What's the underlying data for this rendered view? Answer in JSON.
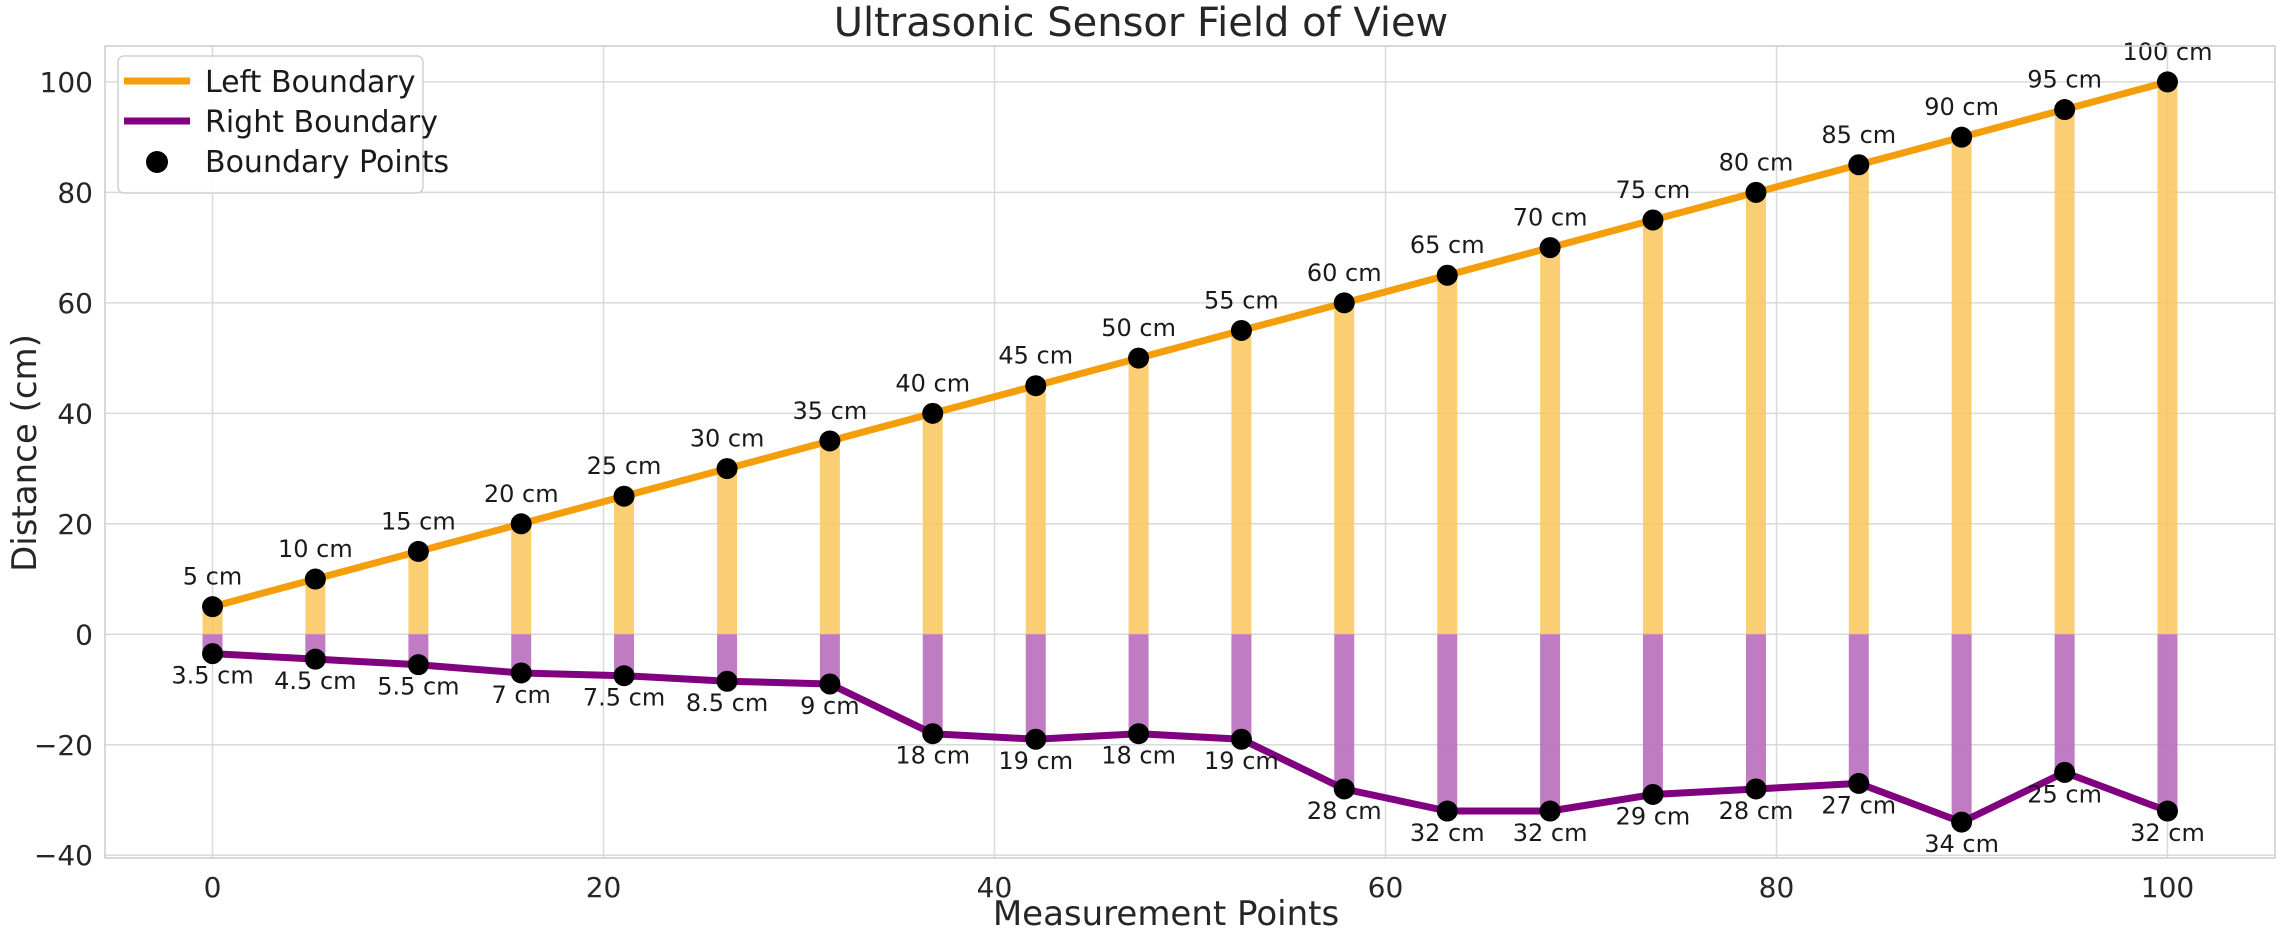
{
  "chart_data": {
    "type": "line",
    "title": "Ultrasonic Sensor Field of View",
    "xlabel": "Measurement Points",
    "ylabel": "Distance (cm)",
    "xlim": [
      -5.5,
      105.5
    ],
    "ylim": [
      -40.5,
      106.5
    ],
    "x_ticks": [
      0,
      20,
      40,
      60,
      80,
      100
    ],
    "y_ticks": [
      -40,
      -20,
      0,
      20,
      40,
      60,
      80,
      100
    ],
    "grid": true,
    "legend_position": "top-left",
    "x": [
      0,
      5.26,
      10.53,
      15.79,
      21.05,
      26.32,
      31.58,
      36.84,
      42.11,
      47.37,
      52.63,
      57.89,
      63.16,
      68.42,
      73.68,
      78.95,
      84.21,
      89.47,
      94.74,
      100
    ],
    "series": [
      {
        "name": "Left Boundary",
        "color": "#f59e0b",
        "bar_color": "#fcc65c",
        "values": [
          5,
          10,
          15,
          20,
          25,
          30,
          35,
          40,
          45,
          50,
          55,
          60,
          65,
          70,
          75,
          80,
          85,
          90,
          95,
          100
        ],
        "labels": [
          "5 cm",
          "10 cm",
          "15 cm",
          "20 cm",
          "25 cm",
          "30 cm",
          "35 cm",
          "40 cm",
          "45 cm",
          "50 cm",
          "55 cm",
          "60 cm",
          "65 cm",
          "70 cm",
          "75 cm",
          "80 cm",
          "85 cm",
          "90 cm",
          "95 cm",
          "100 cm"
        ]
      },
      {
        "name": "Right Boundary",
        "color": "#800080",
        "bar_color": "#b96ebd",
        "values": [
          -3.5,
          -4.5,
          -5.5,
          -7,
          -7.5,
          -8.5,
          -9,
          -18,
          -19,
          -18,
          -19,
          -28,
          -32,
          -32,
          -29,
          -28,
          -27,
          -34,
          -25,
          -32
        ],
        "labels": [
          "3.5 cm",
          "4.5 cm",
          "5.5 cm",
          "7 cm",
          "7.5 cm",
          "8.5 cm",
          "9 cm",
          "18 cm",
          "19 cm",
          "18 cm",
          "19 cm",
          "28 cm",
          "32 cm",
          "32 cm",
          "29 cm",
          "28 cm",
          "27 cm",
          "34 cm",
          "25 cm",
          "32 cm"
        ]
      }
    ],
    "points_series": {
      "name": "Boundary Points",
      "color": "#000000"
    }
  }
}
